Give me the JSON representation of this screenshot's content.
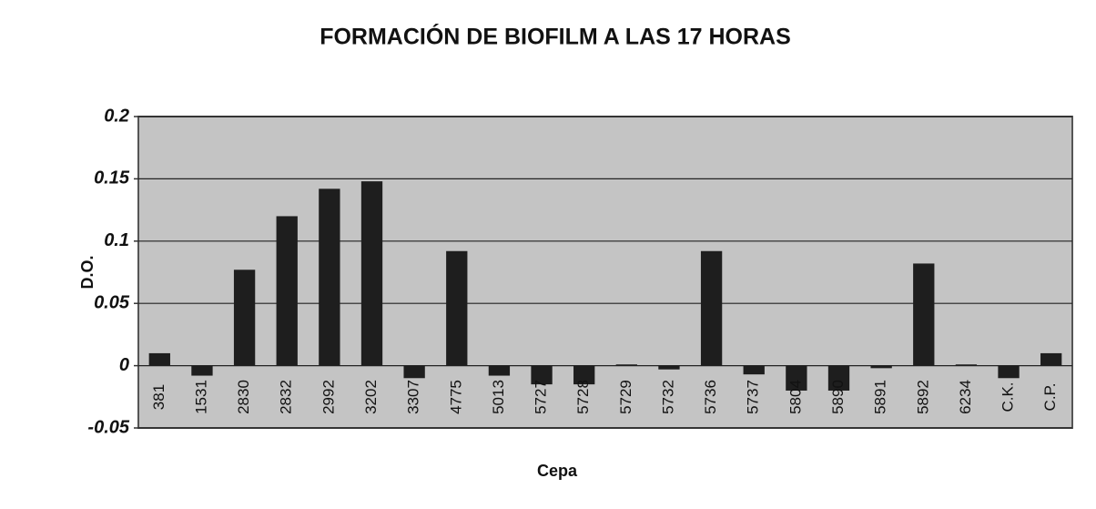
{
  "chart_data": {
    "type": "bar",
    "title": "FORMACIÓN DE BIOFILM A LAS 17 HORAS",
    "x_label": "Cepa",
    "y_label": "D.O.",
    "categories": [
      "381",
      "1531",
      "2830",
      "2832",
      "2992",
      "3202",
      "3307",
      "4775",
      "5013",
      "5727",
      "5728",
      "5729",
      "5732",
      "5736",
      "5737",
      "5804",
      "5890",
      "5891",
      "5892",
      "6234",
      "C.K.",
      "C.P."
    ],
    "values": [
      0.01,
      -0.008,
      0.077,
      0.12,
      0.142,
      0.148,
      -0.01,
      0.092,
      -0.008,
      -0.015,
      -0.015,
      0.001,
      -0.003,
      0.092,
      -0.007,
      -0.02,
      -0.02,
      -0.002,
      0.082,
      0.001,
      -0.01,
      0.01
    ],
    "color": "#1e1e1e",
    "ylim": [
      -0.05,
      0.2
    ],
    "yticks": [
      -0.05,
      0,
      0.05,
      0.1,
      0.15,
      0.2
    ],
    "grid": true
  }
}
